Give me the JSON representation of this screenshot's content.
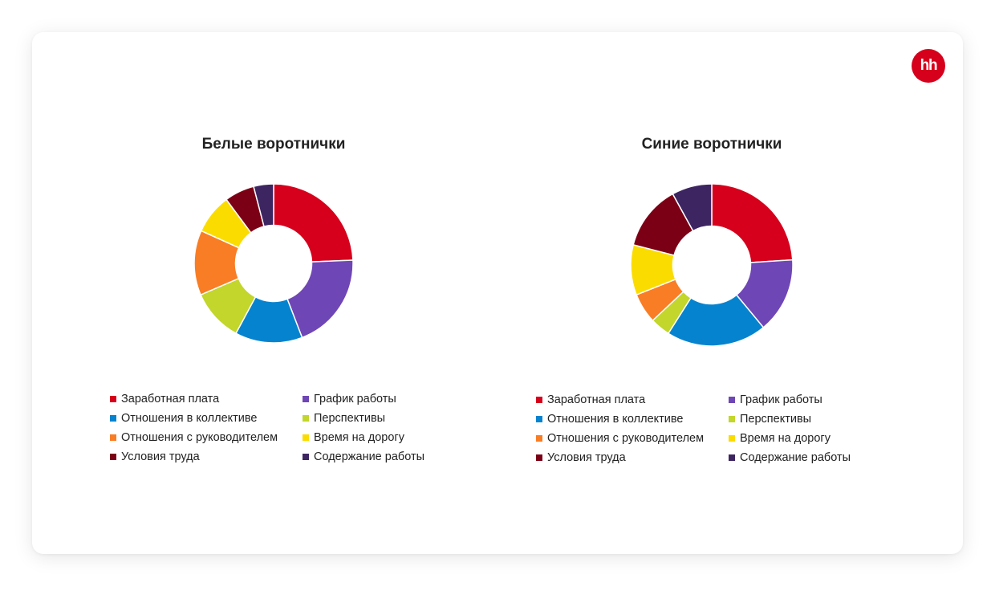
{
  "brand": {
    "logo_text": "hh"
  },
  "categories": [
    "Заработная плата",
    "График работы",
    "Отношения в коллективе",
    "Перспективы",
    "Отношения с руководителем",
    "Время на дорогу",
    "Условия труда",
    "Содержание работы"
  ],
  "colors": [
    "#d6001c",
    "#6f46b5",
    "#0583cf",
    "#c2d62b",
    "#f97d24",
    "#fbdc00",
    "#7c0015",
    "#3d2562"
  ],
  "chart_data": [
    {
      "type": "pie",
      "donut": true,
      "title": "Белые воротнички",
      "categories": [
        "Заработная плата",
        "График работы",
        "Отношения в коллективе",
        "Перспективы",
        "Отношения с руководителем",
        "Время на дорогу",
        "Условия труда",
        "Содержание работы"
      ],
      "values": [
        24,
        19.5,
        13.5,
        10.5,
        13,
        8,
        6,
        4
      ],
      "legend": "bottom"
    },
    {
      "type": "pie",
      "donut": true,
      "title": "Синие воротнички",
      "categories": [
        "Заработная плата",
        "График работы",
        "Отношения в коллективе",
        "Перспективы",
        "Отношения с руководителем",
        "Время на дорогу",
        "Условия труда",
        "Содержание работы"
      ],
      "values": [
        24,
        15,
        20,
        4,
        6,
        10,
        13,
        8
      ],
      "legend": "bottom"
    }
  ]
}
